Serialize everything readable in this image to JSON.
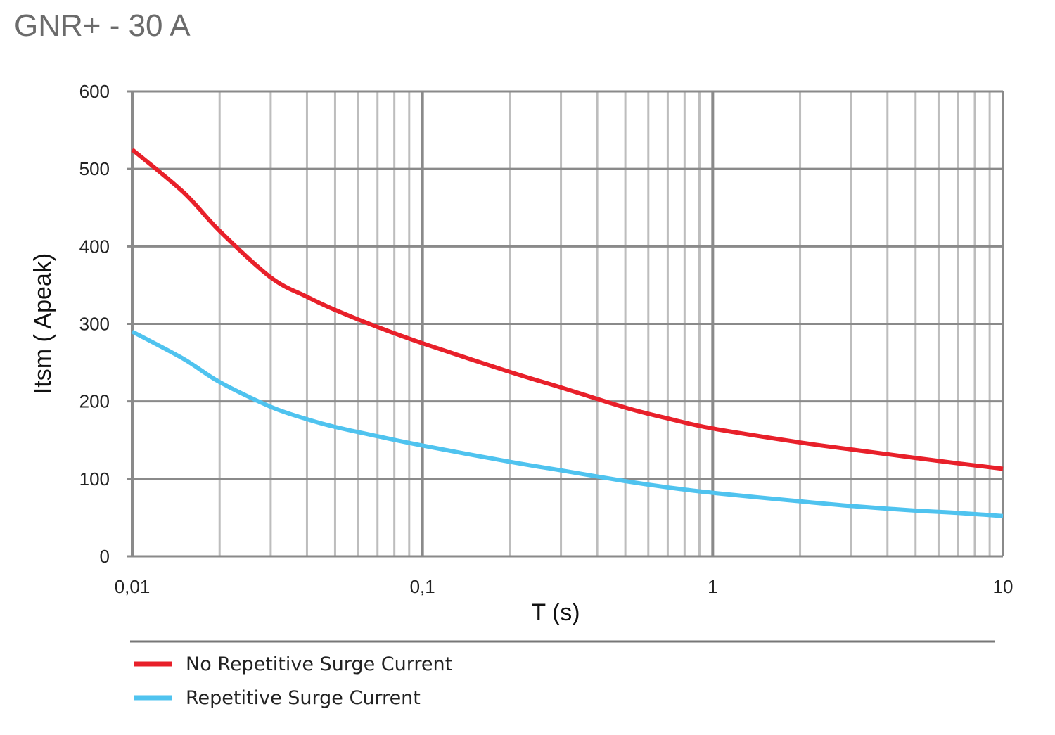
{
  "chart_data": {
    "type": "line",
    "title": "GNR+ - 30 A",
    "xlabel": "T (s)",
    "ylabel": "Itsm ( Apeak)",
    "xscale": "log",
    "xlim": [
      0.01,
      10
    ],
    "ylim": [
      0,
      600
    ],
    "grid": true,
    "legend_position": "bottom",
    "x_ticks": [
      0.01,
      0.1,
      1,
      10
    ],
    "x_tick_labels": [
      "0,01",
      "0,1",
      "1",
      "10"
    ],
    "y_ticks": [
      0,
      100,
      200,
      300,
      400,
      500,
      600
    ],
    "y_tick_labels": [
      "0",
      "100",
      "200",
      "300",
      "400",
      "500",
      "600"
    ],
    "series": [
      {
        "name": "No Repetitive Surge Current",
        "color": "#e8202a",
        "x": [
          0.01,
          0.015,
          0.02,
          0.03,
          0.04,
          0.05,
          0.07,
          0.1,
          0.2,
          0.3,
          0.5,
          0.7,
          1,
          2,
          3,
          5,
          7,
          10
        ],
        "y": [
          525,
          470,
          420,
          360,
          335,
          318,
          296,
          275,
          238,
          218,
          192,
          178,
          165,
          147,
          138,
          127,
          120,
          113
        ]
      },
      {
        "name": "Repetitive Surge Current",
        "color": "#4fc3ef",
        "x": [
          0.01,
          0.015,
          0.02,
          0.03,
          0.04,
          0.05,
          0.07,
          0.1,
          0.2,
          0.3,
          0.5,
          0.7,
          1,
          2,
          3,
          5,
          7,
          10
        ],
        "y": [
          290,
          255,
          225,
          193,
          177,
          167,
          155,
          143,
          122,
          111,
          97,
          89,
          82,
          71,
          65,
          59,
          56,
          52
        ]
      }
    ]
  }
}
